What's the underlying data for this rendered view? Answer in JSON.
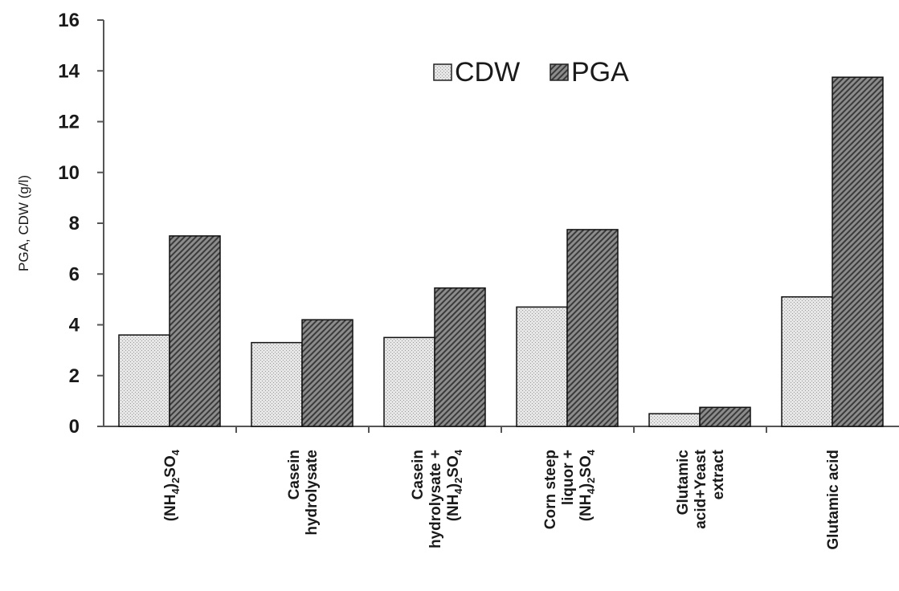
{
  "chart_data": {
    "type": "bar",
    "title": "",
    "xlabel": "",
    "ylabel": "PGA, CDW (g/l)",
    "ylim": [
      0,
      16
    ],
    "yticks": [
      0,
      2,
      4,
      6,
      8,
      10,
      12,
      14,
      16
    ],
    "grid": false,
    "legend_position": "top-center",
    "categories": [
      {
        "id": "c1",
        "lines": [
          [
            {
              "t": "(NH"
            },
            {
              "t": "4",
              "sub": true
            },
            {
              "t": ")"
            },
            {
              "t": "2",
              "sub": true
            },
            {
              "t": "SO"
            },
            {
              "t": "4",
              "sub": true
            }
          ]
        ]
      },
      {
        "id": "c2",
        "lines": [
          [
            {
              "t": "Casein"
            }
          ],
          [
            {
              "t": "hydrolysate"
            }
          ]
        ]
      },
      {
        "id": "c3",
        "lines": [
          [
            {
              "t": "Casein"
            }
          ],
          [
            {
              "t": "hydrolysate +"
            }
          ],
          [
            {
              "t": "(NH"
            },
            {
              "t": "4",
              "sub": true
            },
            {
              "t": ")"
            },
            {
              "t": "2",
              "sub": true
            },
            {
              "t": "SO"
            },
            {
              "t": "4",
              "sub": true
            }
          ]
        ]
      },
      {
        "id": "c4",
        "lines": [
          [
            {
              "t": "Corn steep"
            }
          ],
          [
            {
              "t": "liquor +"
            }
          ],
          [
            {
              "t": "(NH"
            },
            {
              "t": "4",
              "sub": true
            },
            {
              "t": ")"
            },
            {
              "t": "2",
              "sub": true
            },
            {
              "t": "SO"
            },
            {
              "t": "4",
              "sub": true
            }
          ]
        ]
      },
      {
        "id": "c5",
        "lines": [
          [
            {
              "t": "Glutamic"
            }
          ],
          [
            {
              "t": "acid+Yeast"
            }
          ],
          [
            {
              "t": "extract"
            }
          ]
        ]
      },
      {
        "id": "c6",
        "lines": [
          [
            {
              "t": "Glutamic acid"
            }
          ]
        ]
      }
    ],
    "series": [
      {
        "name": "CDW",
        "color": "#e4e4e4",
        "pattern": "dots",
        "values": [
          3.6,
          3.3,
          3.5,
          4.7,
          0.5,
          5.1
        ]
      },
      {
        "name": "PGA",
        "color": "#7a7a7a",
        "pattern": "diagonal-hatch",
        "values": [
          7.5,
          4.2,
          5.45,
          7.75,
          0.75,
          13.75
        ]
      }
    ]
  }
}
